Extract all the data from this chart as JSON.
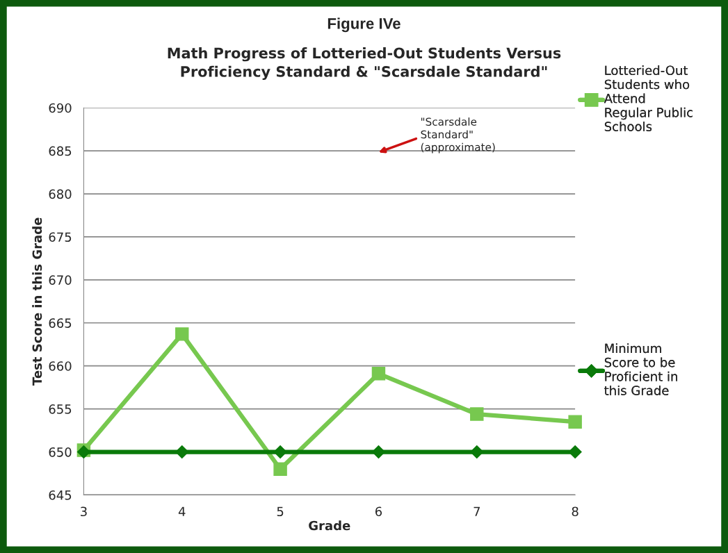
{
  "chart_data": {
    "type": "line",
    "title": "Figure IVe",
    "subtitle": "Math Progress of Lotteried-Out Students Versus\nProficiency Standard & \"Scarsdale Standard\"",
    "xlabel": "Grade",
    "ylabel": "Test Score in this Grade",
    "x": [
      3,
      4,
      5,
      6,
      7,
      8
    ],
    "series": [
      {
        "name": "Lotteried-Out\nStudents who\nAttend\nRegular Public\nSchools",
        "color": "#77c84f",
        "values": [
          650.2,
          663.7,
          648.0,
          659.1,
          654.4,
          653.5
        ],
        "marker": "square"
      },
      {
        "name": "Minimum\nScore to be\nProficient in\nthis Grade",
        "color": "#0a7a0a",
        "values": [
          650,
          650,
          650,
          650,
          650,
          650
        ],
        "marker": "diamond"
      }
    ],
    "xlim": [
      3,
      8
    ],
    "xticks": [
      3,
      4,
      5,
      6,
      7,
      8
    ],
    "ylim": [
      645,
      690
    ],
    "yticks": [
      645,
      650,
      655,
      660,
      665,
      670,
      675,
      680,
      685,
      690
    ],
    "grid": "y",
    "legend": "right",
    "line_style": "solid",
    "annotations": [
      "\"Scarsdale\nStandard\"\n(approximate)"
    ]
  }
}
